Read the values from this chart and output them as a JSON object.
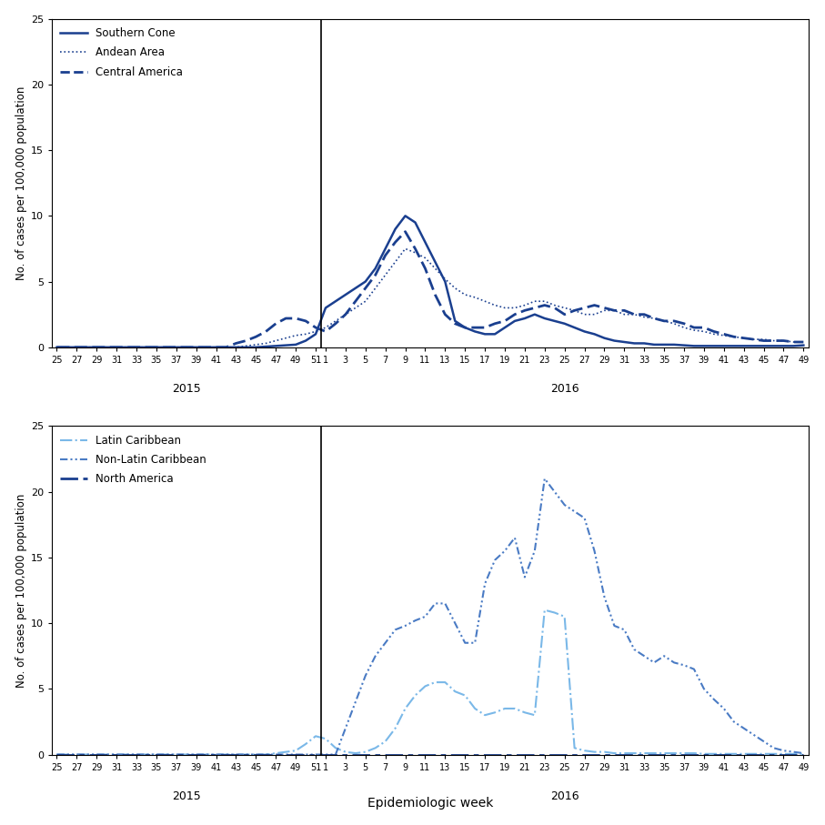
{
  "dark_blue": "#1a3f8f",
  "mid_blue": "#4472c4",
  "light_blue": "#7ab8e8",
  "weeks_2015": [
    25,
    26,
    27,
    28,
    29,
    30,
    31,
    32,
    33,
    34,
    35,
    36,
    37,
    38,
    39,
    40,
    41,
    42,
    43,
    44,
    45,
    46,
    47,
    48,
    49,
    50,
    51
  ],
  "weeks_2016": [
    1,
    2,
    3,
    4,
    5,
    6,
    7,
    8,
    9,
    10,
    11,
    12,
    13,
    14,
    15,
    16,
    17,
    18,
    19,
    20,
    21,
    22,
    23,
    24,
    25,
    26,
    27,
    28,
    29,
    30,
    31,
    32,
    33,
    34,
    35,
    36,
    37,
    38,
    39,
    40,
    41,
    42,
    43,
    44,
    45,
    46,
    47,
    48,
    49
  ],
  "southern_cone_2015": [
    0,
    0,
    0,
    0,
    0,
    0,
    0,
    0,
    0,
    0,
    0,
    0,
    0,
    0,
    0,
    0,
    0,
    0,
    0,
    0,
    0,
    0.05,
    0.1,
    0.15,
    0.2,
    0.5,
    1.0
  ],
  "southern_cone_2016": [
    3.0,
    3.5,
    4.0,
    4.5,
    5.0,
    6.0,
    7.5,
    9.0,
    10.0,
    9.5,
    8.0,
    6.5,
    5.0,
    2.0,
    1.5,
    1.2,
    1.0,
    1.0,
    1.5,
    2.0,
    2.2,
    2.5,
    2.2,
    2.0,
    1.8,
    1.5,
    1.2,
    1.0,
    0.7,
    0.5,
    0.4,
    0.3,
    0.3,
    0.2,
    0.2,
    0.2,
    0.15,
    0.1,
    0.1,
    0.1,
    0.1,
    0.1,
    0.1,
    0.1,
    0.1,
    0.1,
    0.1,
    0.1,
    0.15
  ],
  "andean_area_2015": [
    0,
    0,
    0,
    0,
    0,
    0,
    0,
    0,
    0,
    0,
    0,
    0,
    0,
    0,
    0,
    0,
    0,
    0,
    0,
    0.1,
    0.2,
    0.3,
    0.5,
    0.7,
    0.9,
    1.0,
    1.2
  ],
  "andean_area_2016": [
    1.5,
    2.0,
    2.5,
    3.0,
    3.5,
    4.5,
    5.5,
    6.5,
    7.5,
    7.2,
    6.8,
    6.0,
    5.2,
    4.5,
    4.0,
    3.8,
    3.5,
    3.2,
    3.0,
    3.0,
    3.2,
    3.5,
    3.5,
    3.2,
    3.0,
    2.8,
    2.5,
    2.5,
    2.8,
    2.8,
    2.5,
    2.5,
    2.3,
    2.2,
    2.0,
    1.8,
    1.5,
    1.3,
    1.2,
    1.0,
    0.9,
    0.8,
    0.7,
    0.6,
    0.6,
    0.5,
    0.5,
    0.4,
    0.4
  ],
  "central_america_2015": [
    0,
    0,
    0,
    0,
    0,
    0,
    0,
    0,
    0,
    0,
    0,
    0,
    0,
    0,
    0,
    0,
    0,
    0,
    0.3,
    0.5,
    0.8,
    1.2,
    1.8,
    2.2,
    2.2,
    2.0,
    1.5
  ],
  "central_america_2016": [
    1.2,
    1.8,
    2.5,
    3.5,
    4.5,
    5.5,
    7.0,
    8.0,
    8.8,
    7.5,
    6.0,
    4.0,
    2.5,
    1.8,
    1.5,
    1.5,
    1.5,
    1.8,
    2.0,
    2.5,
    2.8,
    3.0,
    3.2,
    3.0,
    2.5,
    2.8,
    3.0,
    3.2,
    3.0,
    2.8,
    2.8,
    2.5,
    2.5,
    2.2,
    2.0,
    2.0,
    1.8,
    1.5,
    1.5,
    1.2,
    1.0,
    0.8,
    0.7,
    0.6,
    0.5,
    0.5,
    0.5,
    0.4,
    0.4
  ],
  "latin_carib_2015": [
    0,
    0,
    0,
    0,
    0,
    0,
    0,
    0,
    0,
    0,
    0,
    0,
    0,
    0,
    0,
    0,
    0,
    0,
    0,
    0,
    0,
    0,
    0.1,
    0.2,
    0.3,
    0.8,
    1.4
  ],
  "latin_carib_2016": [
    1.2,
    0.5,
    0.2,
    0.1,
    0.2,
    0.5,
    1.0,
    2.0,
    3.5,
    4.5,
    5.2,
    5.5,
    5.5,
    4.8,
    4.5,
    3.5,
    3.0,
    3.2,
    3.5,
    3.5,
    3.2,
    3.0,
    11.0,
    10.8,
    10.5,
    0.5,
    0.3,
    0.2,
    0.2,
    0.1,
    0.1,
    0.1,
    0.1,
    0.1,
    0.1,
    0.1,
    0.1,
    0.1,
    0.05,
    0.05,
    0.05,
    0.05,
    0.05,
    0.05,
    0.05,
    0.05,
    0.05,
    0.05,
    0.05
  ],
  "non_latin_carib_2015": [
    0,
    0,
    0,
    0,
    0,
    0,
    0,
    0,
    0,
    0,
    0,
    0,
    0,
    0,
    0,
    0,
    0,
    0,
    0,
    0,
    0,
    0,
    0,
    0,
    0,
    0,
    0
  ],
  "non_latin_carib_2016": [
    0,
    0,
    2.0,
    4.0,
    6.0,
    7.5,
    8.5,
    9.5,
    9.8,
    10.2,
    10.5,
    11.5,
    11.5,
    10.0,
    8.5,
    8.5,
    13.0,
    14.8,
    15.5,
    16.5,
    13.5,
    15.5,
    21.0,
    20.0,
    19.0,
    18.5,
    18.0,
    15.5,
    12.0,
    9.8,
    9.5,
    8.0,
    7.5,
    7.0,
    7.5,
    7.0,
    6.8,
    6.5,
    5.0,
    4.2,
    3.5,
    2.5,
    2.0,
    1.5,
    1.0,
    0.5,
    0.3,
    0.2,
    0.1
  ],
  "north_america_2015": [
    0,
    0,
    0,
    0,
    0,
    0,
    0,
    0,
    0,
    0,
    0,
    0,
    0,
    0,
    0,
    0,
    0,
    0,
    0,
    0,
    0,
    0,
    0,
    0,
    0,
    0,
    0
  ],
  "north_america_2016": [
    0,
    0,
    0,
    0,
    0,
    0,
    0,
    0,
    0,
    0,
    0,
    0,
    0,
    0,
    0,
    0,
    0,
    0,
    0,
    0,
    0,
    0,
    0,
    0,
    0,
    0,
    0,
    0,
    0,
    0,
    0,
    0,
    0,
    0,
    0,
    0,
    0,
    0,
    0,
    0,
    0,
    0,
    0,
    0,
    0,
    0,
    0,
    0,
    0
  ],
  "xtick_labels_2015": [
    25,
    27,
    29,
    31,
    33,
    35,
    37,
    39,
    41,
    43,
    45,
    47,
    49,
    51
  ],
  "xtick_labels_2016": [
    1,
    3,
    5,
    7,
    9,
    11,
    13,
    15,
    17,
    19,
    21,
    23,
    25,
    27,
    29,
    31,
    33,
    35,
    37,
    39,
    41,
    43,
    45,
    47,
    49
  ],
  "ylabel": "No. of cases per 100,000 population",
  "xlabel": "Epidemiologic week",
  "ylim": [
    0,
    25
  ],
  "yticks": [
    0,
    5,
    10,
    15,
    20,
    25
  ]
}
